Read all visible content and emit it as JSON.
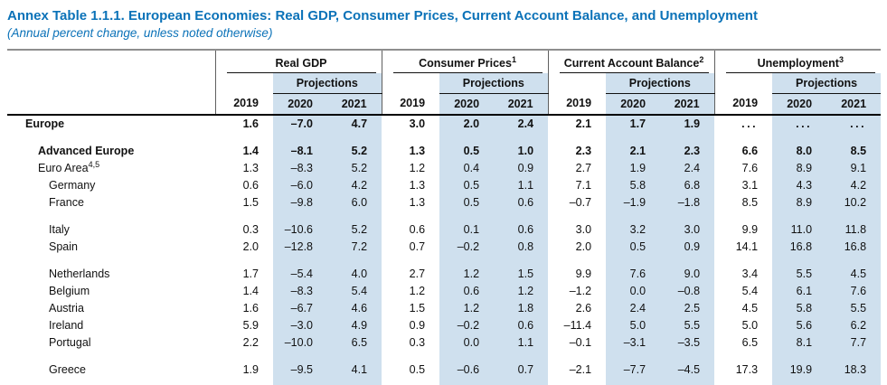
{
  "title": "Annex Table 1.1.1. European Economies: Real GDP, Consumer Prices, Current Account Balance, and Unemployment",
  "subtitle": "(Annual percent change, unless noted otherwise)",
  "colors": {
    "accent_blue": "#0b72b8",
    "shade_blue": "#cfe0ee",
    "rule_gray": "#8e8e8e",
    "rule_black": "#000000"
  },
  "table": {
    "groups": [
      {
        "label": "Real GDP",
        "sup": ""
      },
      {
        "label": "Consumer Prices",
        "sup": "1"
      },
      {
        "label": "Current Account Balance",
        "sup": "2"
      },
      {
        "label": "Unemployment",
        "sup": "3"
      }
    ],
    "projections_label": "Projections",
    "years": [
      "2019",
      "2020",
      "2021"
    ],
    "rows": [
      {
        "label": "Europe",
        "sup": "",
        "indent": 0,
        "bold": true,
        "gap_after": true,
        "values": [
          "1.6",
          "–7.0",
          "4.7",
          "3.0",
          "2.0",
          "2.4",
          "2.1",
          "1.7",
          "1.9",
          "...",
          "...",
          "..."
        ]
      },
      {
        "label": "Advanced Europe",
        "sup": "",
        "indent": 1,
        "bold": true,
        "gap_after": false,
        "values": [
          "1.4",
          "–8.1",
          "5.2",
          "1.3",
          "0.5",
          "1.0",
          "2.3",
          "2.1",
          "2.3",
          "6.6",
          "8.0",
          "8.5"
        ]
      },
      {
        "label": "Euro Area",
        "sup": "4,5",
        "indent": 1,
        "bold": false,
        "gap_after": false,
        "values": [
          "1.3",
          "–8.3",
          "5.2",
          "1.2",
          "0.4",
          "0.9",
          "2.7",
          "1.9",
          "2.4",
          "7.6",
          "8.9",
          "9.1"
        ]
      },
      {
        "label": "Germany",
        "sup": "",
        "indent": 2,
        "bold": false,
        "gap_after": false,
        "values": [
          "0.6",
          "–6.0",
          "4.2",
          "1.3",
          "0.5",
          "1.1",
          "7.1",
          "5.8",
          "6.8",
          "3.1",
          "4.3",
          "4.2"
        ]
      },
      {
        "label": "France",
        "sup": "",
        "indent": 2,
        "bold": false,
        "gap_after": true,
        "values": [
          "1.5",
          "–9.8",
          "6.0",
          "1.3",
          "0.5",
          "0.6",
          "–0.7",
          "–1.9",
          "–1.8",
          "8.5",
          "8.9",
          "10.2"
        ]
      },
      {
        "label": "Italy",
        "sup": "",
        "indent": 2,
        "bold": false,
        "gap_after": false,
        "values": [
          "0.3",
          "–10.6",
          "5.2",
          "0.6",
          "0.1",
          "0.6",
          "3.0",
          "3.2",
          "3.0",
          "9.9",
          "11.0",
          "11.8"
        ]
      },
      {
        "label": "Spain",
        "sup": "",
        "indent": 2,
        "bold": false,
        "gap_after": true,
        "values": [
          "2.0",
          "–12.8",
          "7.2",
          "0.7",
          "–0.2",
          "0.8",
          "2.0",
          "0.5",
          "0.9",
          "14.1",
          "16.8",
          "16.8"
        ]
      },
      {
        "label": "Netherlands",
        "sup": "",
        "indent": 2,
        "bold": false,
        "gap_after": false,
        "values": [
          "1.7",
          "–5.4",
          "4.0",
          "2.7",
          "1.2",
          "1.5",
          "9.9",
          "7.6",
          "9.0",
          "3.4",
          "5.5",
          "4.5"
        ]
      },
      {
        "label": "Belgium",
        "sup": "",
        "indent": 2,
        "bold": false,
        "gap_after": false,
        "values": [
          "1.4",
          "–8.3",
          "5.4",
          "1.2",
          "0.6",
          "1.2",
          "–1.2",
          "0.0",
          "–0.8",
          "5.4",
          "6.1",
          "7.6"
        ]
      },
      {
        "label": "Austria",
        "sup": "",
        "indent": 2,
        "bold": false,
        "gap_after": false,
        "values": [
          "1.6",
          "–6.7",
          "4.6",
          "1.5",
          "1.2",
          "1.8",
          "2.6",
          "2.4",
          "2.5",
          "4.5",
          "5.8",
          "5.5"
        ]
      },
      {
        "label": "Ireland",
        "sup": "",
        "indent": 2,
        "bold": false,
        "gap_after": false,
        "values": [
          "5.9",
          "–3.0",
          "4.9",
          "0.9",
          "–0.2",
          "0.6",
          "–11.4",
          "5.0",
          "5.5",
          "5.0",
          "5.6",
          "6.2"
        ]
      },
      {
        "label": "Portugal",
        "sup": "",
        "indent": 2,
        "bold": false,
        "gap_after": true,
        "values": [
          "2.2",
          "–10.0",
          "6.5",
          "0.3",
          "0.0",
          "1.1",
          "–0.1",
          "–3.1",
          "–3.5",
          "6.5",
          "8.1",
          "7.7"
        ]
      },
      {
        "label": "Greece",
        "sup": "",
        "indent": 2,
        "bold": false,
        "gap_after": false,
        "values": [
          "1.9",
          "–9.5",
          "4.1",
          "0.5",
          "–0.6",
          "0.7",
          "–2.1",
          "–7.7",
          "–4.5",
          "17.3",
          "19.9",
          "18.3"
        ]
      }
    ]
  }
}
